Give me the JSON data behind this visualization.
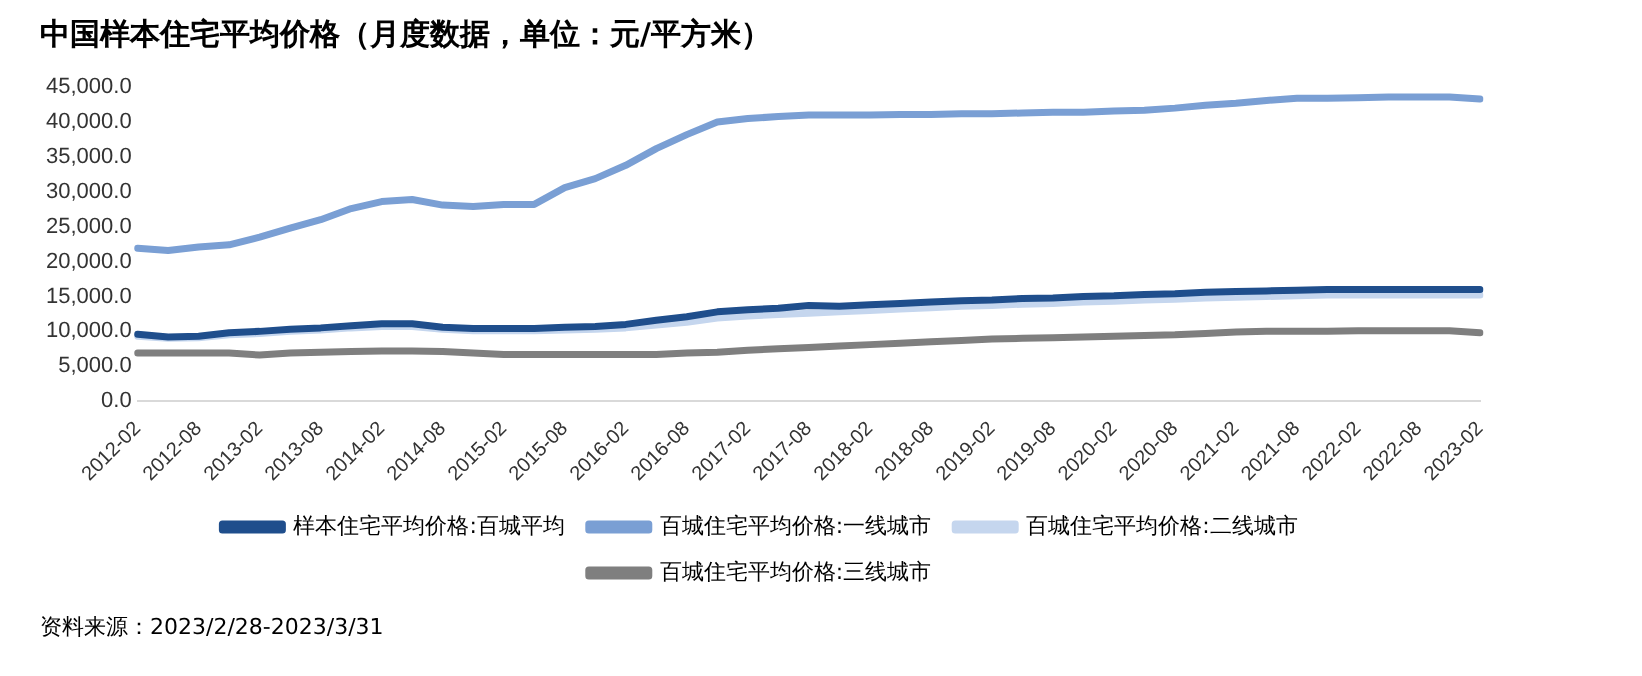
{
  "chart_data": {
    "type": "line",
    "title": "中国样本住宅平均价格（月度数据，单位：元/平方米）",
    "categories": [
      "2012-02",
      null,
      "2012-08",
      null,
      "2013-02",
      null,
      "2013-08",
      null,
      "2014-02",
      null,
      "2014-08",
      null,
      "2015-02",
      null,
      "2015-08",
      null,
      "2016-02",
      null,
      "2016-08",
      null,
      "2017-02",
      null,
      "2017-08",
      null,
      "2018-02",
      null,
      "2018-08",
      null,
      "2019-02",
      null,
      "2019-08",
      null,
      "2020-02",
      null,
      "2020-08",
      null,
      "2021-02",
      null,
      "2021-08",
      null,
      "2022-02",
      null,
      "2022-08",
      null,
      "2023-02"
    ],
    "series": [
      {
        "name": "样本住宅平均价格:百城平均",
        "color": "#1f4e8c",
        "values": [
          9600,
          9200,
          9300,
          9800,
          10000,
          10300,
          10500,
          10800,
          11100,
          11100,
          10600,
          10400,
          10400,
          10400,
          10600,
          10700,
          11000,
          11600,
          12100,
          12800,
          13100,
          13300,
          13700,
          13600,
          13800,
          14000,
          14200,
          14400,
          14500,
          14700,
          14800,
          15000,
          15100,
          15300,
          15400,
          15600,
          15700,
          15800,
          15900,
          16000,
          16000,
          16000,
          16000,
          16000,
          16000
        ]
      },
      {
        "name": "百城住宅平均价格:一线城市",
        "color": "#7a9fd4",
        "values": [
          21900,
          21600,
          22100,
          22400,
          23500,
          24800,
          26000,
          27600,
          28600,
          28900,
          28100,
          27900,
          28200,
          28200,
          30600,
          31900,
          33800,
          36200,
          38200,
          40000,
          40500,
          40800,
          41000,
          41000,
          41000,
          41100,
          41100,
          41200,
          41200,
          41300,
          41400,
          41400,
          41600,
          41700,
          42000,
          42400,
          42700,
          43100,
          43400,
          43400,
          43500,
          43600,
          43600,
          43600,
          43300
        ]
      },
      {
        "name": "百城住宅平均价格:二线城市",
        "color": "#c5d6ee",
        "values": [
          9300,
          9000,
          9100,
          9500,
          9700,
          10000,
          10200,
          10500,
          10700,
          10700,
          10300,
          10100,
          10100,
          10100,
          10200,
          10300,
          10500,
          10900,
          11300,
          11900,
          12200,
          12400,
          12600,
          12800,
          13000,
          13200,
          13400,
          13600,
          13700,
          13900,
          14000,
          14200,
          14300,
          14500,
          14600,
          14800,
          14900,
          15000,
          15100,
          15200,
          15200,
          15200,
          15200,
          15200,
          15200
        ]
      },
      {
        "name": "百城住宅平均价格:三线城市",
        "color": "#7f7f7f",
        "values": [
          6900,
          6900,
          6900,
          6900,
          6600,
          6900,
          7000,
          7100,
          7200,
          7200,
          7100,
          6900,
          6700,
          6700,
          6700,
          6700,
          6700,
          6700,
          6900,
          7000,
          7300,
          7500,
          7700,
          7900,
          8100,
          8300,
          8500,
          8700,
          8900,
          9000,
          9100,
          9200,
          9300,
          9400,
          9500,
          9700,
          9900,
          10000,
          10000,
          10000,
          10100,
          10100,
          10100,
          10100,
          9800
        ]
      }
    ],
    "ylim": [
      0,
      45000
    ],
    "yticks": [
      {
        "value": 0,
        "label": "0.0"
      },
      {
        "value": 5000,
        "label": "5,000.0"
      },
      {
        "value": 10000,
        "label": "10,000.0"
      },
      {
        "value": 15000,
        "label": "15,000.0"
      },
      {
        "value": 20000,
        "label": "20,000.0"
      },
      {
        "value": 25000,
        "label": "25,000.0"
      },
      {
        "value": 30000,
        "label": "30,000.0"
      },
      {
        "value": 35000,
        "label": "35,000.0"
      },
      {
        "value": 40000,
        "label": "40,000.0"
      },
      {
        "value": 45000,
        "label": "45,000.0"
      }
    ],
    "grid": false,
    "legend": "bottom",
    "marker": "none",
    "line_style": "solid",
    "annotations": [
      "资料来源：2023/2/28-2023/3/31"
    ]
  }
}
